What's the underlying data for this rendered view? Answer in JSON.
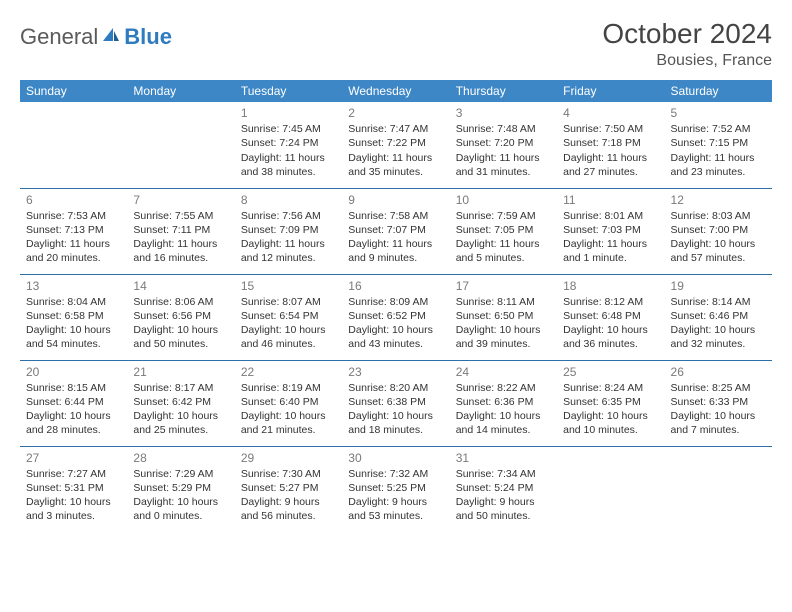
{
  "logo": {
    "general": "General",
    "blue": "Blue"
  },
  "title": "October 2024",
  "location": "Bousies, France",
  "colors": {
    "header_bg": "#3d87c7",
    "header_text": "#ffffff",
    "row_border": "#2f6fa8",
    "daynum": "#7a7a7a",
    "text": "#333333",
    "logo_gray": "#5a5a5a",
    "logo_blue": "#2f7bbf"
  },
  "typography": {
    "title_fontsize": 28,
    "location_fontsize": 16,
    "header_fontsize": 12,
    "cell_fontsize": 10.5,
    "daynum_fontsize": 12
  },
  "dayHeaders": [
    "Sunday",
    "Monday",
    "Tuesday",
    "Wednesday",
    "Thursday",
    "Friday",
    "Saturday"
  ],
  "weeks": [
    [
      null,
      null,
      {
        "n": "1",
        "sr": "7:45 AM",
        "ss": "7:24 PM",
        "dl": "11 hours and 38 minutes."
      },
      {
        "n": "2",
        "sr": "7:47 AM",
        "ss": "7:22 PM",
        "dl": "11 hours and 35 minutes."
      },
      {
        "n": "3",
        "sr": "7:48 AM",
        "ss": "7:20 PM",
        "dl": "11 hours and 31 minutes."
      },
      {
        "n": "4",
        "sr": "7:50 AM",
        "ss": "7:18 PM",
        "dl": "11 hours and 27 minutes."
      },
      {
        "n": "5",
        "sr": "7:52 AM",
        "ss": "7:15 PM",
        "dl": "11 hours and 23 minutes."
      }
    ],
    [
      {
        "n": "6",
        "sr": "7:53 AM",
        "ss": "7:13 PM",
        "dl": "11 hours and 20 minutes."
      },
      {
        "n": "7",
        "sr": "7:55 AM",
        "ss": "7:11 PM",
        "dl": "11 hours and 16 minutes."
      },
      {
        "n": "8",
        "sr": "7:56 AM",
        "ss": "7:09 PM",
        "dl": "11 hours and 12 minutes."
      },
      {
        "n": "9",
        "sr": "7:58 AM",
        "ss": "7:07 PM",
        "dl": "11 hours and 9 minutes."
      },
      {
        "n": "10",
        "sr": "7:59 AM",
        "ss": "7:05 PM",
        "dl": "11 hours and 5 minutes."
      },
      {
        "n": "11",
        "sr": "8:01 AM",
        "ss": "7:03 PM",
        "dl": "11 hours and 1 minute."
      },
      {
        "n": "12",
        "sr": "8:03 AM",
        "ss": "7:00 PM",
        "dl": "10 hours and 57 minutes."
      }
    ],
    [
      {
        "n": "13",
        "sr": "8:04 AM",
        "ss": "6:58 PM",
        "dl": "10 hours and 54 minutes."
      },
      {
        "n": "14",
        "sr": "8:06 AM",
        "ss": "6:56 PM",
        "dl": "10 hours and 50 minutes."
      },
      {
        "n": "15",
        "sr": "8:07 AM",
        "ss": "6:54 PM",
        "dl": "10 hours and 46 minutes."
      },
      {
        "n": "16",
        "sr": "8:09 AM",
        "ss": "6:52 PM",
        "dl": "10 hours and 43 minutes."
      },
      {
        "n": "17",
        "sr": "8:11 AM",
        "ss": "6:50 PM",
        "dl": "10 hours and 39 minutes."
      },
      {
        "n": "18",
        "sr": "8:12 AM",
        "ss": "6:48 PM",
        "dl": "10 hours and 36 minutes."
      },
      {
        "n": "19",
        "sr": "8:14 AM",
        "ss": "6:46 PM",
        "dl": "10 hours and 32 minutes."
      }
    ],
    [
      {
        "n": "20",
        "sr": "8:15 AM",
        "ss": "6:44 PM",
        "dl": "10 hours and 28 minutes."
      },
      {
        "n": "21",
        "sr": "8:17 AM",
        "ss": "6:42 PM",
        "dl": "10 hours and 25 minutes."
      },
      {
        "n": "22",
        "sr": "8:19 AM",
        "ss": "6:40 PM",
        "dl": "10 hours and 21 minutes."
      },
      {
        "n": "23",
        "sr": "8:20 AM",
        "ss": "6:38 PM",
        "dl": "10 hours and 18 minutes."
      },
      {
        "n": "24",
        "sr": "8:22 AM",
        "ss": "6:36 PM",
        "dl": "10 hours and 14 minutes."
      },
      {
        "n": "25",
        "sr": "8:24 AM",
        "ss": "6:35 PM",
        "dl": "10 hours and 10 minutes."
      },
      {
        "n": "26",
        "sr": "8:25 AM",
        "ss": "6:33 PM",
        "dl": "10 hours and 7 minutes."
      }
    ],
    [
      {
        "n": "27",
        "sr": "7:27 AM",
        "ss": "5:31 PM",
        "dl": "10 hours and 3 minutes."
      },
      {
        "n": "28",
        "sr": "7:29 AM",
        "ss": "5:29 PM",
        "dl": "10 hours and 0 minutes."
      },
      {
        "n": "29",
        "sr": "7:30 AM",
        "ss": "5:27 PM",
        "dl": "9 hours and 56 minutes."
      },
      {
        "n": "30",
        "sr": "7:32 AM",
        "ss": "5:25 PM",
        "dl": "9 hours and 53 minutes."
      },
      {
        "n": "31",
        "sr": "7:34 AM",
        "ss": "5:24 PM",
        "dl": "9 hours and 50 minutes."
      },
      null,
      null
    ]
  ],
  "labels": {
    "sunrise": "Sunrise:",
    "sunset": "Sunset:",
    "daylight": "Daylight:"
  }
}
